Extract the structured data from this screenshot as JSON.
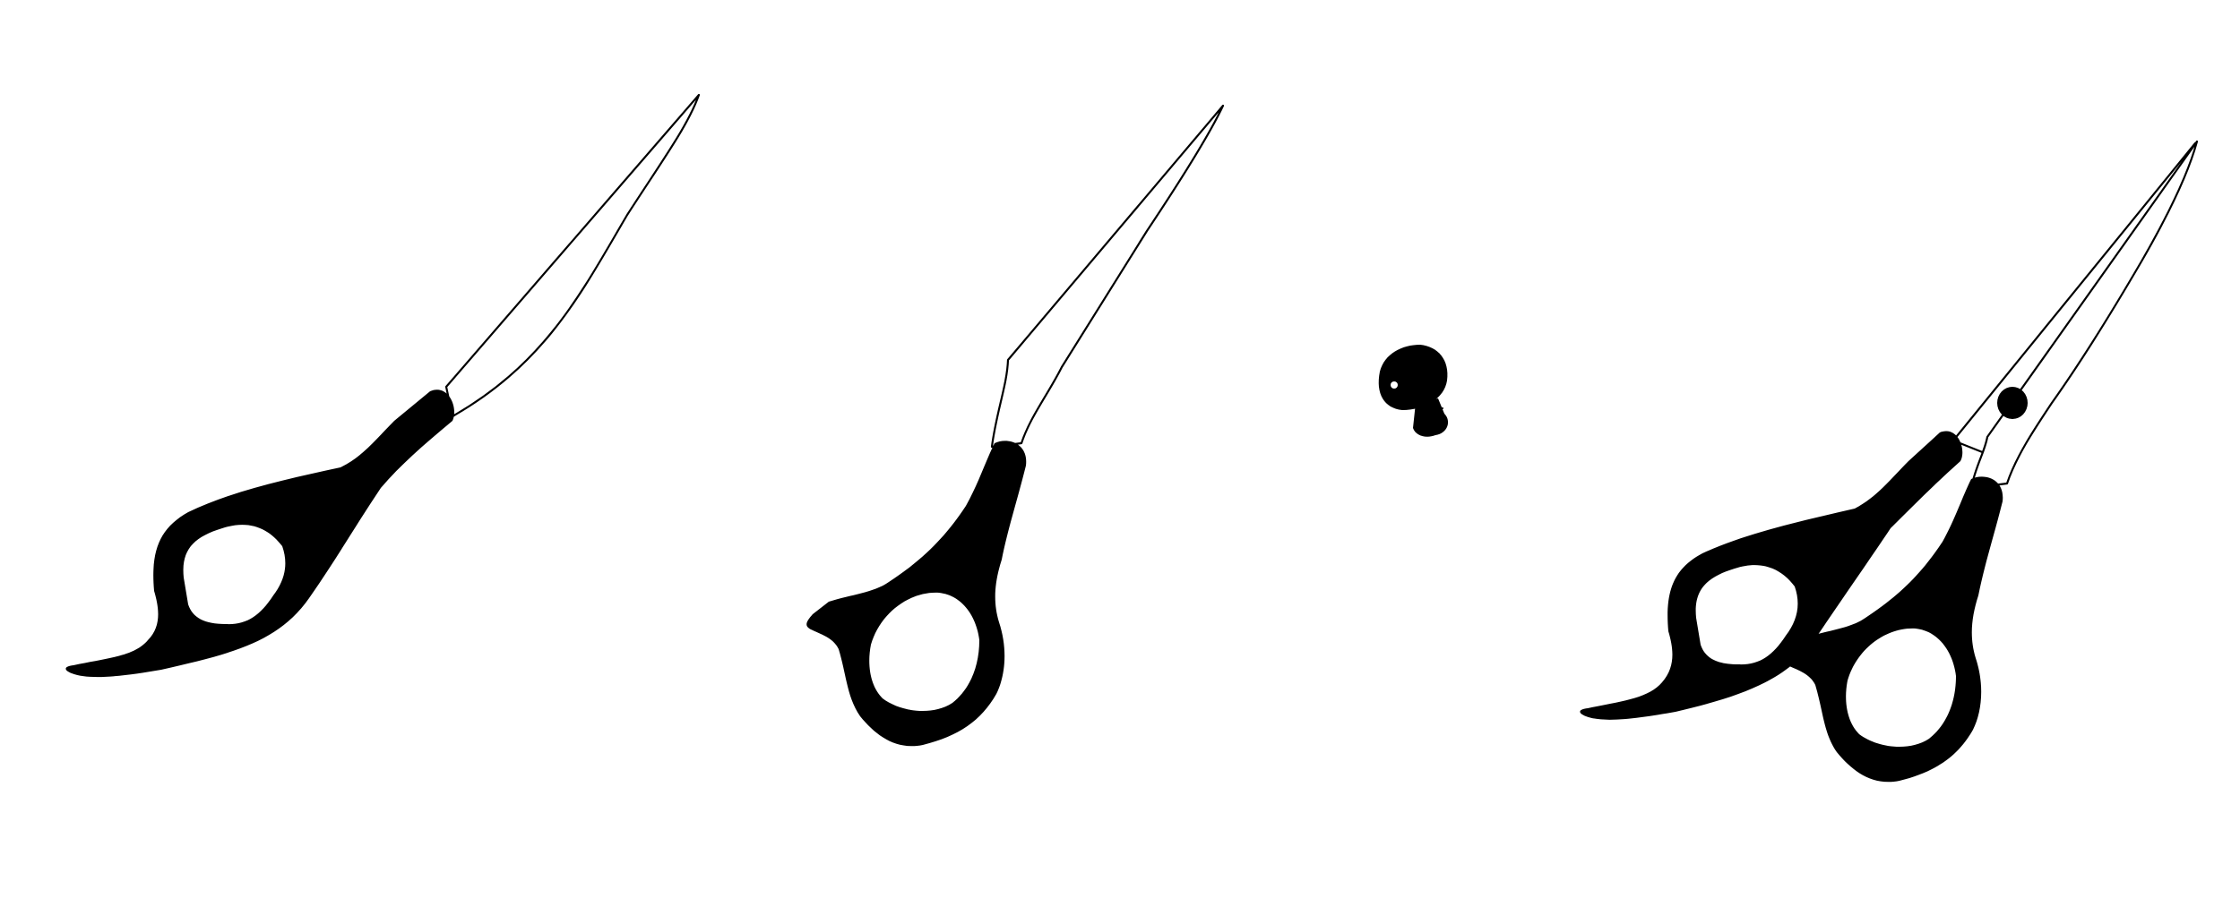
{
  "figure": {
    "parts": [
      {
        "id": "blade-a",
        "label": ""
      },
      {
        "id": "blade-b",
        "label": ""
      },
      {
        "id": "pivot-screw",
        "label": ""
      },
      {
        "id": "assembled-scissors",
        "label": ""
      }
    ],
    "colors": {
      "ink": "#000000",
      "background": "#ffffff"
    }
  }
}
